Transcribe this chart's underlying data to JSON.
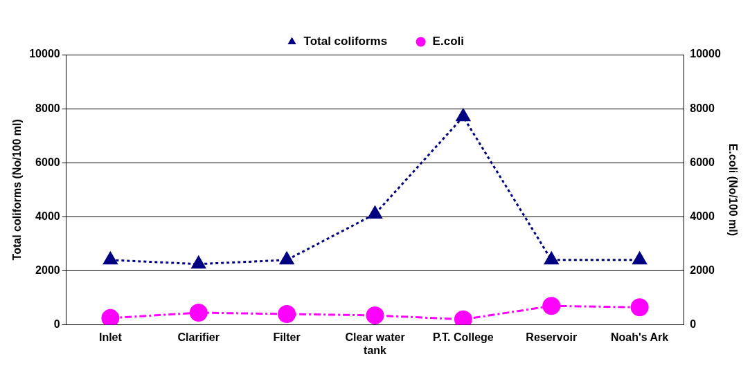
{
  "chart_data": {
    "type": "line",
    "categories": [
      "Inlet",
      "Clarifier",
      "Filter",
      "Clear water tank",
      "P.T. College",
      "Reservoir",
      "Noah's Ark"
    ],
    "series": [
      {
        "name": "Total coliforms",
        "color": "#000080",
        "values": [
          2400,
          2250,
          2400,
          4100,
          7700,
          2400,
          2400
        ],
        "marker": "triangle",
        "line_style": "dotted"
      },
      {
        "name": "E.coli",
        "color": "#ff00ff",
        "values": [
          250,
          450,
          400,
          350,
          200,
          700,
          650
        ],
        "marker": "circle",
        "line_style": "dashed",
        "axis": "y2"
      }
    ],
    "ylabel": "Total coliforms (No/100 ml)",
    "y2label": "E.coli (No/100 ml)",
    "ylim": [
      0,
      10000
    ],
    "yticks": [
      0,
      2000,
      4000,
      6000,
      8000,
      10000
    ],
    "y2lim": [
      0,
      10000
    ],
    "y2ticks": [
      0,
      2000,
      4000,
      6000,
      8000,
      10000
    ],
    "grid": "y",
    "legend": "top"
  }
}
